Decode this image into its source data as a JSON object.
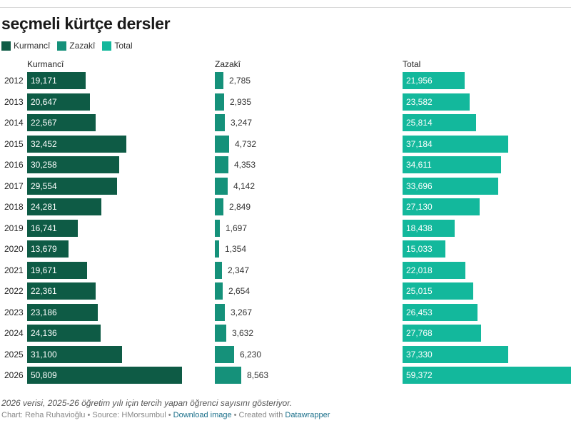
{
  "chart_data": {
    "type": "bar",
    "title": "seçmeli kürtçe dersler",
    "legend": [
      "Kurmancî",
      "Zazakî",
      "Total"
    ],
    "categories": [
      "2012",
      "2013",
      "2014",
      "2015",
      "2016",
      "2017",
      "2018",
      "2019",
      "2020",
      "2021",
      "2022",
      "2023",
      "2024",
      "2025",
      "2026"
    ],
    "series": [
      {
        "name": "Kurmancî",
        "color": "#0e5b45",
        "values": [
          19171,
          20647,
          22567,
          32452,
          30258,
          29554,
          24281,
          16741,
          13679,
          19671,
          22361,
          23186,
          24136,
          31100,
          50809
        ],
        "labels": [
          "19,171",
          "20,647",
          "22,567",
          "32,452",
          "30,258",
          "29,554",
          "24,281",
          "16,741",
          "13,679",
          "19,671",
          "22,361",
          "23,186",
          "24,136",
          "31,100",
          "50,809"
        ]
      },
      {
        "name": "Zazakî",
        "color": "#15917a",
        "values": [
          2785,
          2935,
          3247,
          4732,
          4353,
          4142,
          2849,
          1697,
          1354,
          2347,
          2654,
          3267,
          3632,
          6230,
          8563
        ],
        "labels": [
          "2,785",
          "2,935",
          "3,247",
          "4,732",
          "4,353",
          "4,142",
          "2,849",
          "1,697",
          "1,354",
          "2,347",
          "2,654",
          "3,267",
          "3,632",
          "6,230",
          "8,563"
        ]
      },
      {
        "name": "Total",
        "color": "#13b89c",
        "values": [
          21956,
          23582,
          25814,
          37184,
          34611,
          33696,
          27130,
          18438,
          15033,
          22018,
          25015,
          26453,
          27768,
          37330,
          59372
        ],
        "labels": [
          "21,956",
          "23,582",
          "25,814",
          "37,184",
          "34,611",
          "33,696",
          "27,130",
          "18,438",
          "15,033",
          "22,018",
          "25,015",
          "26,453",
          "27,768",
          "37,330",
          "59,372"
        ]
      }
    ],
    "note": "2026 verisi, 2025-26 öğretim yılı için tercih yapan öğrenci sayısını gösteriyor.",
    "footer": {
      "prefix": "Chart: Reha Ruhavioğlu • Source: HMorsumbul • ",
      "download": "Download image",
      "middle": " • Created with ",
      "creator": "Datawrapper"
    }
  }
}
